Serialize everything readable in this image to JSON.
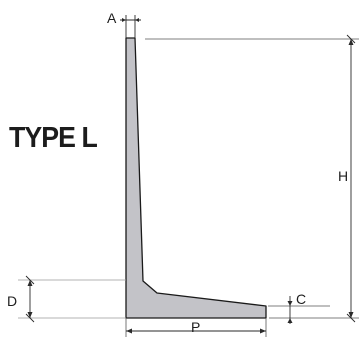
{
  "title": "TYPE L",
  "dimensions": {
    "a": "A",
    "h": "H",
    "d": "D",
    "p": "P",
    "c": "C"
  },
  "colors": {
    "profile_fill": "#c3c3c8",
    "profile_stroke": "#1a1a1a",
    "dimension_line": "#2a2a2a",
    "extension_line": "#9a9a9a",
    "text": "#1e1e1e"
  }
}
